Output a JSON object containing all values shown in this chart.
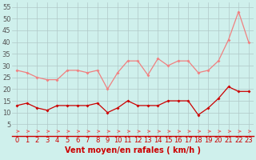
{
  "x": [
    0,
    1,
    2,
    3,
    4,
    5,
    6,
    7,
    8,
    9,
    10,
    11,
    12,
    13,
    14,
    15,
    16,
    17,
    18,
    19,
    20,
    21,
    22,
    23
  ],
  "rafales": [
    28,
    27,
    25,
    24,
    24,
    28,
    28,
    27,
    28,
    20,
    27,
    32,
    32,
    26,
    33,
    30,
    32,
    32,
    27,
    28,
    32,
    41,
    53,
    40
  ],
  "moyen": [
    13,
    14,
    12,
    11,
    13,
    13,
    13,
    13,
    14,
    10,
    12,
    15,
    13,
    13,
    13,
    15,
    15,
    15,
    9,
    12,
    16,
    21,
    19,
    19
  ],
  "color_rafales": "#f08080",
  "color_moyen": "#cc0000",
  "color_arrows": "#ee6666",
  "bg_color": "#cff0ec",
  "grid_color": "#b0c8c8",
  "xlabel": "Vent moyen/en rafales ( km/h )",
  "ylim": [
    0,
    57
  ],
  "yticks": [
    5,
    10,
    15,
    20,
    25,
    30,
    35,
    40,
    45,
    50,
    55
  ],
  "xticks": [
    0,
    1,
    2,
    3,
    4,
    5,
    6,
    7,
    8,
    9,
    10,
    11,
    12,
    13,
    14,
    15,
    16,
    17,
    18,
    19,
    20,
    21,
    22,
    23
  ],
  "xlabel_fontsize": 7,
  "tick_fontsize": 6
}
